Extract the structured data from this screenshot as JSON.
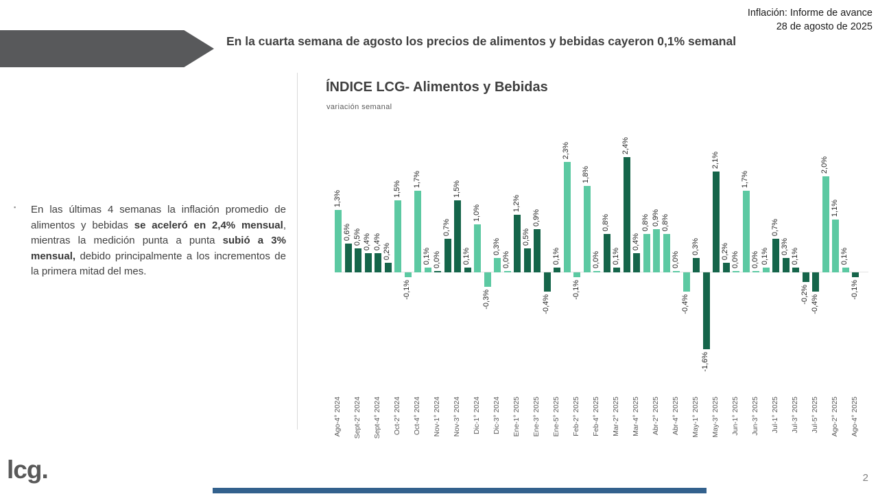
{
  "header": {
    "line1": "Inflación: Informe de avance",
    "line2": "28 de agosto de 2025"
  },
  "banner": {
    "title_line1": "En la cuarta semana de agosto los precios de alimentos y bebidas cayeron",
    "title_line2": "0,1% semanal",
    "arrow_color": "#58595b"
  },
  "bullet": {
    "marker": "▪",
    "parts": [
      {
        "text": "En las últimas 4 semanas la inflación promedio de alimentos y bebidas ",
        "bold": false
      },
      {
        "text": "se aceleró en 2,4% mensual",
        "bold": true
      },
      {
        "text": ", mientras la medición punta a punta ",
        "bold": false
      },
      {
        "text": "subió a 3% mensual,",
        "bold": true
      },
      {
        "text": " debido principalmente a los incrementos de la primera mitad del mes.",
        "bold": false
      }
    ]
  },
  "chart_data": {
    "type": "bar",
    "title": "ÍNDICE LCG- Alimentos y Bebidas",
    "subtitle": "variación semanal",
    "unit": "%",
    "ylim": [
      -1.8,
      2.6
    ],
    "grid": false,
    "legend": "none",
    "colors": {
      "light": "#5cc9a2",
      "dark": "#15654a"
    },
    "bars": [
      {
        "label": "Ago-4° 2024",
        "value": 1.3,
        "display": "1,3%",
        "color": "light"
      },
      {
        "label": "",
        "value": 0.6,
        "display": "0,6%",
        "color": "dark"
      },
      {
        "label": "Sept-2° 2024",
        "value": 0.5,
        "display": "0,5%",
        "color": "dark"
      },
      {
        "label": "",
        "value": 0.4,
        "display": "0,4%",
        "color": "dark"
      },
      {
        "label": "Sept-4° 2024",
        "value": 0.4,
        "display": "0,4%",
        "color": "dark"
      },
      {
        "label": "",
        "value": 0.2,
        "display": "0,2%",
        "color": "dark"
      },
      {
        "label": "Oct-2° 2024",
        "value": 1.5,
        "display": "1,5%",
        "color": "light"
      },
      {
        "label": "",
        "value": -0.1,
        "display": "-0,1%",
        "color": "light"
      },
      {
        "label": "Oct-4° 2024",
        "value": 1.7,
        "display": "1,7%",
        "color": "light"
      },
      {
        "label": "",
        "value": 0.1,
        "display": "0,1%",
        "color": "light"
      },
      {
        "label": "Nov-1° 2024",
        "value": 0.0,
        "display": "0,0%",
        "color": "dark"
      },
      {
        "label": "",
        "value": 0.7,
        "display": "0,7%",
        "color": "dark"
      },
      {
        "label": "Nov-3° 2024",
        "value": 1.5,
        "display": "1,5%",
        "color": "dark"
      },
      {
        "label": "",
        "value": 0.1,
        "display": "0,1%",
        "color": "dark"
      },
      {
        "label": "Dic-1° 2024",
        "value": 1.0,
        "display": "1,0%",
        "color": "light"
      },
      {
        "label": "",
        "value": -0.3,
        "display": "-0,3%",
        "color": "light"
      },
      {
        "label": "Dic-3° 2024",
        "value": 0.3,
        "display": "0,3%",
        "color": "light"
      },
      {
        "label": "",
        "value": 0.0,
        "display": "0,0%",
        "color": "light"
      },
      {
        "label": "Ene-1° 2025",
        "value": 1.2,
        "display": "1,2%",
        "color": "dark"
      },
      {
        "label": "",
        "value": 0.5,
        "display": "0,5%",
        "color": "dark"
      },
      {
        "label": "Ene-3° 2025",
        "value": 0.9,
        "display": "0,9%",
        "color": "dark"
      },
      {
        "label": "",
        "value": -0.4,
        "display": "-0,4%",
        "color": "dark"
      },
      {
        "label": "Ene-5° 2025",
        "value": 0.1,
        "display": "0,1%",
        "color": "dark"
      },
      {
        "label": "",
        "value": 2.3,
        "display": "2,3%",
        "color": "light"
      },
      {
        "label": "Feb-2° 2025",
        "value": -0.1,
        "display": "-0,1%",
        "color": "light"
      },
      {
        "label": "",
        "value": 1.8,
        "display": "1,8%",
        "color": "light"
      },
      {
        "label": "Feb-4° 2025",
        "value": 0.0,
        "display": "0,0%",
        "color": "light"
      },
      {
        "label": "",
        "value": 0.8,
        "display": "0,8%",
        "color": "dark"
      },
      {
        "label": "Mar-2° 2025",
        "value": 0.1,
        "display": "0,1%",
        "color": "dark"
      },
      {
        "label": "",
        "value": 2.4,
        "display": "2,4%",
        "color": "dark"
      },
      {
        "label": "Mar-4° 2025",
        "value": 0.4,
        "display": "0,4%",
        "color": "dark"
      },
      {
        "label": "",
        "value": 0.8,
        "display": "0,8%",
        "color": "light"
      },
      {
        "label": "Abr-2° 2025",
        "value": 0.9,
        "display": "0,9%",
        "color": "light"
      },
      {
        "label": "",
        "value": 0.8,
        "display": "0,8%",
        "color": "light"
      },
      {
        "label": "Abr-4° 2025",
        "value": 0.0,
        "display": "0,0%",
        "color": "light"
      },
      {
        "label": "",
        "value": -0.4,
        "display": "-0,4%",
        "color": "light"
      },
      {
        "label": "May-1° 2025",
        "value": 0.3,
        "display": "0,3%",
        "color": "dark"
      },
      {
        "label": "",
        "value": -1.6,
        "display": "-1,6%",
        "color": "dark"
      },
      {
        "label": "May-3° 2025",
        "value": 2.1,
        "display": "2,1%",
        "color": "dark"
      },
      {
        "label": "",
        "value": 0.2,
        "display": "0,2%",
        "color": "dark"
      },
      {
        "label": "Jun-1° 2025",
        "value": 0.0,
        "display": "0,0%",
        "color": "light"
      },
      {
        "label": "",
        "value": 1.7,
        "display": "1,7%",
        "color": "light"
      },
      {
        "label": "Jun-3° 2025",
        "value": 0.0,
        "display": "0,0%",
        "color": "light"
      },
      {
        "label": "",
        "value": 0.1,
        "display": "0,1%",
        "color": "light"
      },
      {
        "label": "Jul-1° 2025",
        "value": 0.7,
        "display": "0,7%",
        "color": "dark"
      },
      {
        "label": "",
        "value": 0.3,
        "display": "0,3%",
        "color": "dark"
      },
      {
        "label": "Jul-3° 2025",
        "value": 0.1,
        "display": "0,1%",
        "color": "dark"
      },
      {
        "label": "",
        "value": -0.2,
        "display": "-0,2%",
        "color": "dark"
      },
      {
        "label": "Jul-5° 2025",
        "value": -0.4,
        "display": "-0,4%",
        "color": "dark"
      },
      {
        "label": "",
        "value": 2.0,
        "display": "2,0%",
        "color": "light"
      },
      {
        "label": "Ago-2° 2025",
        "value": 1.1,
        "display": "1,1%",
        "color": "light"
      },
      {
        "label": "",
        "value": 0.1,
        "display": "0,1%",
        "color": "light"
      },
      {
        "label": "Ago-4° 2025",
        "value": -0.1,
        "display": "-0,1%",
        "color": "dark"
      }
    ]
  },
  "footer": {
    "logo": "lcg.",
    "page": "2",
    "accent_color": "#33618d"
  }
}
